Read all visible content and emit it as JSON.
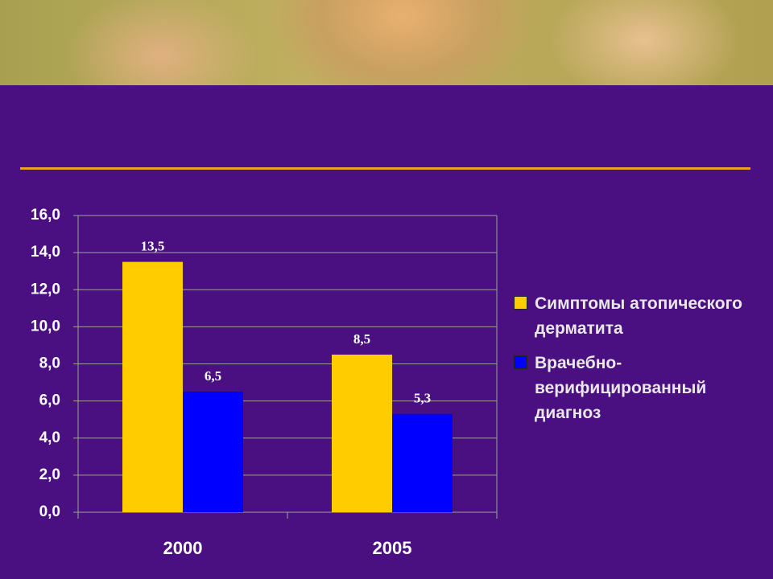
{
  "chart_data": {
    "type": "bar",
    "categories": [
      "2000",
      "2005"
    ],
    "series": [
      {
        "name": "Симптомы атопического дерматита",
        "color": "#ffcc00",
        "values": [
          13.5,
          8.5
        ],
        "value_labels": [
          "13,5",
          "8,5"
        ]
      },
      {
        "name": "Врачебно-верифицированный диагноз",
        "color": "#0000ff",
        "values": [
          6.5,
          5.3
        ],
        "value_labels": [
          "6,5",
          "5,3"
        ]
      }
    ],
    "ylim": [
      0,
      16
    ],
    "yticks": [
      {
        "value": 0,
        "label": "0,0"
      },
      {
        "value": 2,
        "label": "2,0"
      },
      {
        "value": 4,
        "label": "4,0"
      },
      {
        "value": 6,
        "label": "6,0"
      },
      {
        "value": 8,
        "label": "8,0"
      },
      {
        "value": 10,
        "label": "10,0"
      },
      {
        "value": 12,
        "label": "12,0"
      },
      {
        "value": 14,
        "label": "14,0"
      },
      {
        "value": 16,
        "label": "16,0"
      }
    ],
    "grid": true
  }
}
